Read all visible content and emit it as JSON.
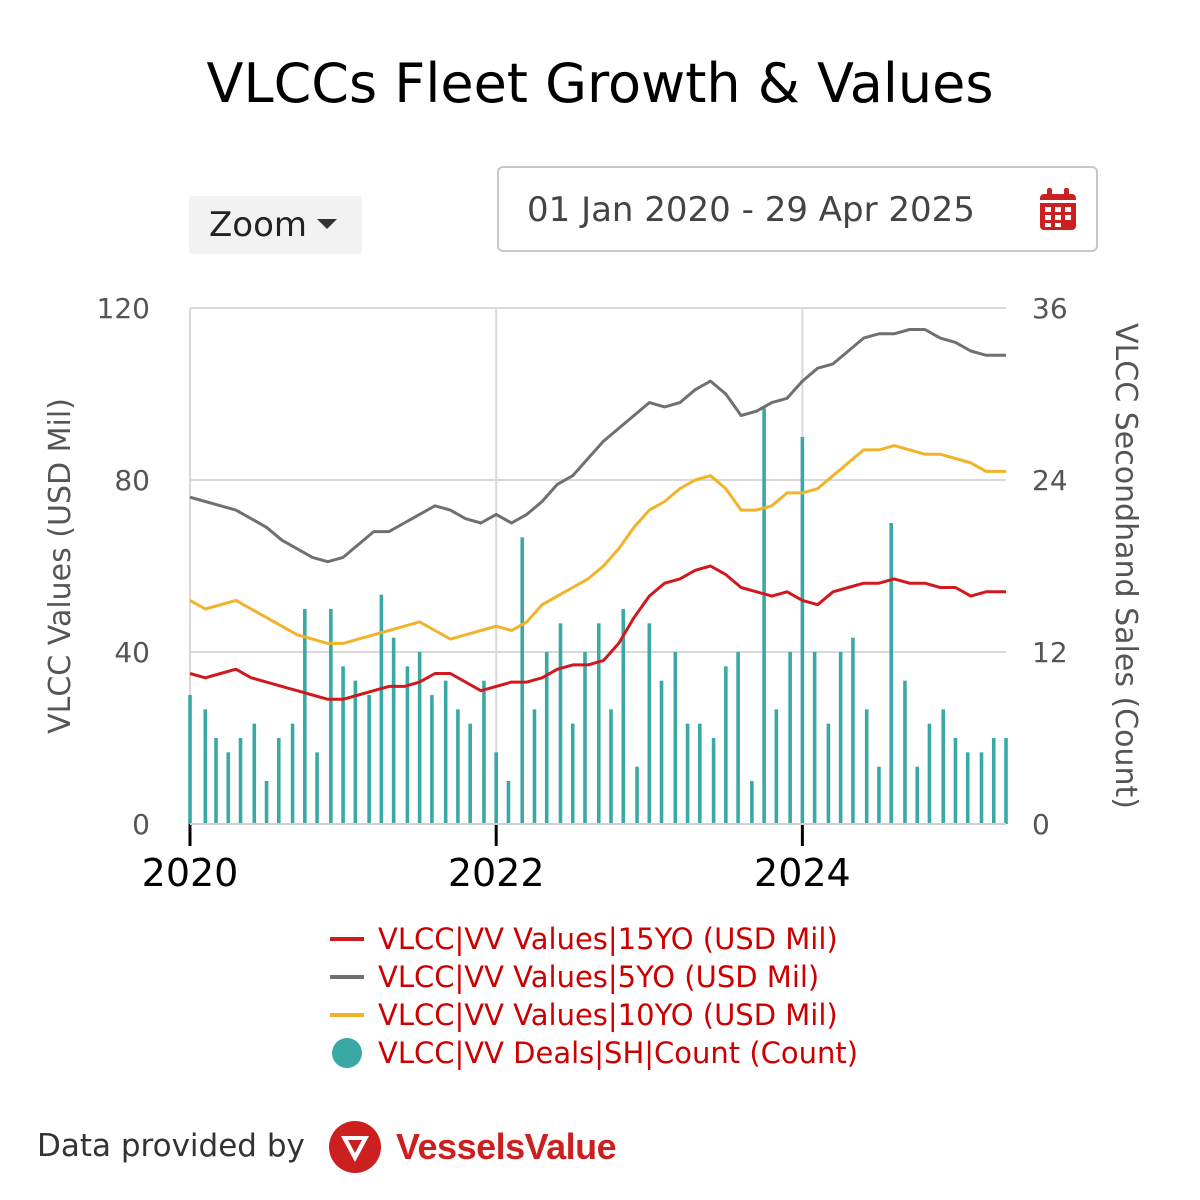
{
  "title": "VLCCs Fleet Growth & Values",
  "zoom": {
    "label": "Zoom"
  },
  "date_range": {
    "value": "01 Jan 2020 - 29 Apr 2025"
  },
  "footer": {
    "provided_by": "Data provided by",
    "brand": "VesselsValue"
  },
  "colors": {
    "red": "#d0191f",
    "grey": "#707070",
    "yellow": "#f2b32b",
    "teal": "#3aa9a6",
    "legend_text": "#cc0000"
  },
  "chart_data": {
    "type": "line+bar",
    "title": "VLCCs Fleet Growth & Values",
    "x_range": [
      2020.0,
      2025.33
    ],
    "x_ticks": [
      "2020",
      "2022",
      "2024"
    ],
    "y_left": {
      "label": "VLCC Values (USD Mil)",
      "ticks": [
        "0",
        "40",
        "80",
        "120"
      ],
      "range": [
        0,
        120
      ]
    },
    "y_right": {
      "label": "VLCC Secondhand Sales (Count)",
      "ticks": [
        "0",
        "12",
        "24",
        "36"
      ],
      "range": [
        0,
        36
      ]
    },
    "series": [
      {
        "name": "VLCC|VV Values|15YO (USD Mil)",
        "type": "line",
        "color": "#d0191f",
        "x": [
          2020.0,
          2020.1,
          2020.2,
          2020.3,
          2020.4,
          2020.5,
          2020.6,
          2020.7,
          2020.8,
          2020.9,
          2021.0,
          2021.1,
          2021.2,
          2021.3,
          2021.4,
          2021.5,
          2021.6,
          2021.7,
          2021.8,
          2021.9,
          2022.0,
          2022.1,
          2022.2,
          2022.3,
          2022.4,
          2022.5,
          2022.6,
          2022.7,
          2022.8,
          2022.9,
          2023.0,
          2023.1,
          2023.2,
          2023.3,
          2023.4,
          2023.5,
          2023.6,
          2023.7,
          2023.8,
          2023.9,
          2024.0,
          2024.1,
          2024.2,
          2024.3,
          2024.4,
          2024.5,
          2024.6,
          2024.7,
          2024.8,
          2024.9,
          2025.0,
          2025.1,
          2025.2,
          2025.33
        ],
        "y": [
          35,
          34,
          35,
          36,
          34,
          33,
          32,
          31,
          30,
          29,
          29,
          30,
          31,
          32,
          32,
          33,
          35,
          35,
          33,
          31,
          32,
          33,
          33,
          34,
          36,
          37,
          37,
          38,
          42,
          48,
          53,
          56,
          57,
          59,
          60,
          58,
          55,
          54,
          53,
          54,
          52,
          51,
          54,
          55,
          56,
          56,
          57,
          56,
          56,
          55,
          55,
          53,
          54,
          54
        ]
      },
      {
        "name": "VLCC|VV Values|5YO (USD Mil)",
        "type": "line",
        "color": "#707070",
        "x": [
          2020.0,
          2020.1,
          2020.2,
          2020.3,
          2020.4,
          2020.5,
          2020.6,
          2020.7,
          2020.8,
          2020.9,
          2021.0,
          2021.1,
          2021.2,
          2021.3,
          2021.4,
          2021.5,
          2021.6,
          2021.7,
          2021.8,
          2021.9,
          2022.0,
          2022.1,
          2022.2,
          2022.3,
          2022.4,
          2022.5,
          2022.6,
          2022.7,
          2022.8,
          2022.9,
          2023.0,
          2023.1,
          2023.2,
          2023.3,
          2023.4,
          2023.5,
          2023.6,
          2023.7,
          2023.8,
          2023.9,
          2024.0,
          2024.1,
          2024.2,
          2024.3,
          2024.4,
          2024.5,
          2024.6,
          2024.7,
          2024.8,
          2024.9,
          2025.0,
          2025.1,
          2025.2,
          2025.33
        ],
        "y": [
          76,
          75,
          74,
          73,
          71,
          69,
          66,
          64,
          62,
          61,
          62,
          65,
          68,
          68,
          70,
          72,
          74,
          73,
          71,
          70,
          72,
          70,
          72,
          75,
          79,
          81,
          85,
          89,
          92,
          95,
          98,
          97,
          98,
          101,
          103,
          100,
          95,
          96,
          98,
          99,
          103,
          106,
          107,
          110,
          113,
          114,
          114,
          115,
          115,
          113,
          112,
          110,
          109,
          109
        ]
      },
      {
        "name": "VLCC|VV Values|10YO (USD Mil)",
        "type": "line",
        "color": "#f2b32b",
        "x": [
          2020.0,
          2020.1,
          2020.2,
          2020.3,
          2020.4,
          2020.5,
          2020.6,
          2020.7,
          2020.8,
          2020.9,
          2021.0,
          2021.1,
          2021.2,
          2021.3,
          2021.4,
          2021.5,
          2021.6,
          2021.7,
          2021.8,
          2021.9,
          2022.0,
          2022.1,
          2022.2,
          2022.3,
          2022.4,
          2022.5,
          2022.6,
          2022.7,
          2022.8,
          2022.9,
          2023.0,
          2023.1,
          2023.2,
          2023.3,
          2023.4,
          2023.5,
          2023.6,
          2023.7,
          2023.8,
          2023.9,
          2024.0,
          2024.1,
          2024.2,
          2024.3,
          2024.4,
          2024.5,
          2024.6,
          2024.7,
          2024.8,
          2024.9,
          2025.0,
          2025.1,
          2025.2,
          2025.33
        ],
        "y": [
          52,
          50,
          51,
          52,
          50,
          48,
          46,
          44,
          43,
          42,
          42,
          43,
          44,
          45,
          46,
          47,
          45,
          43,
          44,
          45,
          46,
          45,
          47,
          51,
          53,
          55,
          57,
          60,
          64,
          69,
          73,
          75,
          78,
          80,
          81,
          78,
          73,
          73,
          74,
          77,
          77,
          78,
          81,
          84,
          87,
          87,
          88,
          87,
          86,
          86,
          85,
          84,
          82,
          82
        ]
      },
      {
        "name": "VLCC|VV Deals|SH|Count (Count)",
        "type": "bar",
        "color": "#3aa9a6",
        "axis": "right",
        "x": [
          2020.0,
          2020.1,
          2020.17,
          2020.25,
          2020.33,
          2020.42,
          2020.5,
          2020.58,
          2020.67,
          2020.75,
          2020.83,
          2020.92,
          2021.0,
          2021.08,
          2021.17,
          2021.25,
          2021.33,
          2021.42,
          2021.5,
          2021.58,
          2021.67,
          2021.75,
          2021.83,
          2021.92,
          2022.0,
          2022.08,
          2022.17,
          2022.25,
          2022.33,
          2022.42,
          2022.5,
          2022.58,
          2022.67,
          2022.75,
          2022.83,
          2022.92,
          2023.0,
          2023.08,
          2023.17,
          2023.25,
          2023.33,
          2023.42,
          2023.5,
          2023.58,
          2023.67,
          2023.75,
          2023.83,
          2023.92,
          2024.0,
          2024.08,
          2024.17,
          2024.25,
          2024.33,
          2024.42,
          2024.5,
          2024.58,
          2024.67,
          2024.75,
          2024.83,
          2024.92,
          2025.0,
          2025.08,
          2025.17,
          2025.25,
          2025.33
        ],
        "y": [
          9,
          8,
          6,
          5,
          6,
          7,
          3,
          6,
          7,
          15,
          5,
          15,
          11,
          10,
          9,
          16,
          13,
          11,
          12,
          9,
          10,
          8,
          7,
          10,
          5,
          3,
          20,
          8,
          12,
          14,
          7,
          12,
          14,
          8,
          15,
          4,
          14,
          10,
          12,
          7,
          7,
          6,
          11,
          12,
          3,
          29,
          8,
          12,
          27,
          12,
          7,
          12,
          13,
          8,
          4,
          21,
          10,
          4,
          7,
          8,
          6,
          5,
          5,
          6,
          6
        ]
      }
    ],
    "legend": [
      "VLCC|VV Values|15YO (USD Mil)",
      "VLCC|VV Values|5YO (USD Mil)",
      "VLCC|VV Values|10YO (USD Mil)",
      "VLCC|VV Deals|SH|Count (Count)"
    ]
  }
}
